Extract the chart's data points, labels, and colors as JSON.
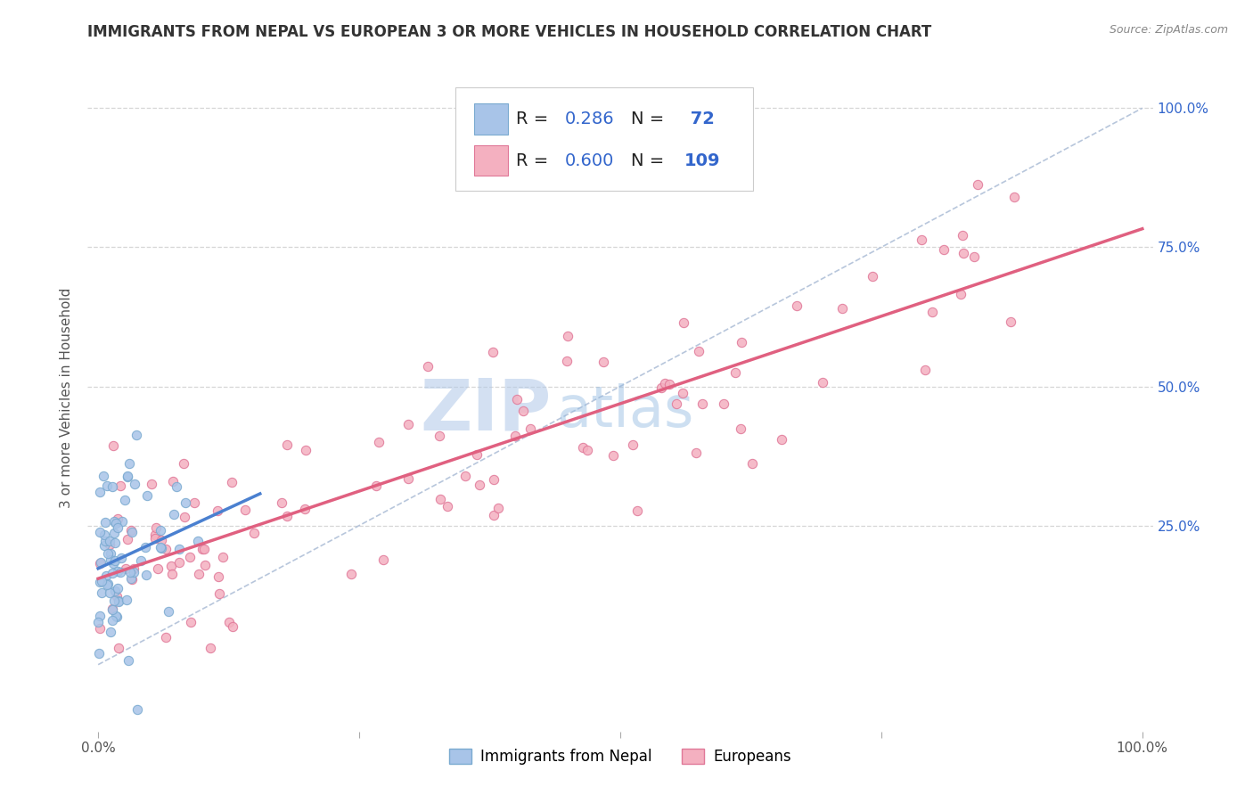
{
  "title": "IMMIGRANTS FROM NEPAL VS EUROPEAN 3 OR MORE VEHICLES IN HOUSEHOLD CORRELATION CHART",
  "source": "Source: ZipAtlas.com",
  "ylabel": "3 or more Vehicles in Household",
  "x_label_bottom": "Immigrants from Nepal",
  "nepal_color": "#a8c4e8",
  "nepal_edge_color": "#7aaad0",
  "european_color": "#f4b0c0",
  "european_edge_color": "#e07898",
  "nepal_line_color": "#4a80d0",
  "european_line_color": "#e06080",
  "diag_line_color": "#b0c0d8",
  "watermark_color": "#c8d8f0",
  "legend_color": "#3366cc",
  "background_color": "#ffffff",
  "grid_color": "#cccccc",
  "title_fontsize": 12,
  "axis_fontsize": 11,
  "tick_fontsize": 11,
  "legend_fontsize": 14,
  "nepal_n": 72,
  "european_n": 109,
  "nepal_R": "0.286",
  "european_R": "0.600",
  "nepal_N": "72",
  "european_N": "109"
}
